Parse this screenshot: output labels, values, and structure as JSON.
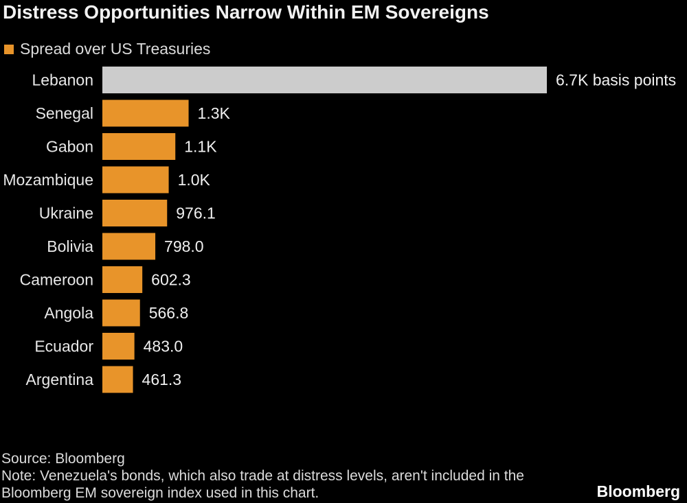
{
  "title": "Distress Opportunities Narrow Within EM Sovereigns",
  "legend": {
    "label": "Spread over US Treasuries",
    "color": "#e8942a"
  },
  "colors": {
    "bar": "#e8942a",
    "highlight": "#cccccc",
    "text": "#e8e8e8"
  },
  "chart_data": {
    "type": "bar",
    "orientation": "horizontal",
    "title": "Distress Opportunities Narrow Within EM Sovereigns",
    "series_name": "Spread over US Treasuries",
    "unit": "basis points",
    "categories": [
      "Lebanon",
      "Senegal",
      "Gabon",
      "Mozambique",
      "Ukraine",
      "Bolivia",
      "Cameroon",
      "Angola",
      "Ecuador",
      "Argentina"
    ],
    "values": [
      6700,
      1300,
      1100,
      1000,
      976.1,
      798.0,
      602.3,
      566.8,
      483.0,
      461.3
    ],
    "labels": [
      "6.7K basis points",
      "1.3K",
      "1.1K",
      "1.0K",
      "976.1",
      "798.0",
      "602.3",
      "566.8",
      "483.0",
      "461.3"
    ],
    "highlighted": [
      "Lebanon"
    ],
    "xlim": [
      0,
      6700
    ],
    "grid": false,
    "legend_position": "top-left"
  },
  "footer": {
    "source": "Source: Bloomberg",
    "note": "Note: Venezuela's bonds, which also trade at distress levels, aren't included in the Bloomberg EM sovereign index used in this chart.",
    "brand": "Bloomberg"
  }
}
